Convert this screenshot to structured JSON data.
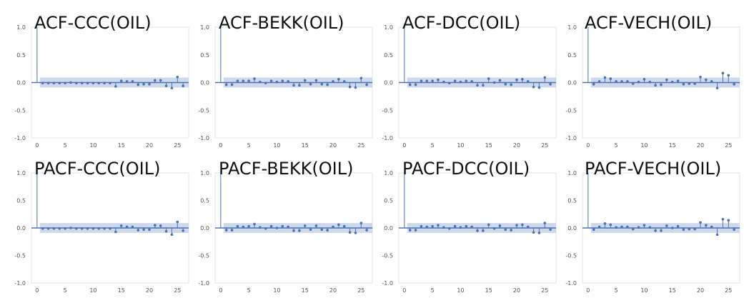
{
  "chart_data": [
    {
      "type": "stem",
      "title": "ACF-CCC(OIL)",
      "x": [
        0,
        1,
        2,
        3,
        4,
        5,
        6,
        7,
        8,
        9,
        10,
        11,
        12,
        13,
        14,
        15,
        16,
        17,
        18,
        19,
        20,
        21,
        22,
        23,
        24,
        25,
        26
      ],
      "values": [
        1.0,
        -0.01,
        -0.01,
        -0.01,
        -0.01,
        -0.01,
        0.0,
        -0.01,
        -0.01,
        -0.01,
        -0.01,
        -0.01,
        -0.01,
        -0.01,
        -0.07,
        0.03,
        0.02,
        0.02,
        -0.04,
        -0.03,
        -0.03,
        0.04,
        0.04,
        -0.06,
        -0.1,
        0.1,
        -0.06
      ],
      "confint": 0.09,
      "xticks": [
        0,
        5,
        10,
        15,
        20,
        25
      ],
      "yticks": [
        -1.0,
        -0.5,
        0.0,
        0.5,
        1.0
      ],
      "ylim": [
        -1.0,
        1.0
      ],
      "xlim": [
        -1,
        27
      ],
      "color": "#4c72b0",
      "band_color": "#c6d2e9"
    },
    {
      "type": "stem",
      "title": "ACF-BEKK(OIL)",
      "x": [
        0,
        1,
        2,
        3,
        4,
        5,
        6,
        7,
        8,
        9,
        10,
        11,
        12,
        13,
        14,
        15,
        16,
        17,
        18,
        19,
        20,
        21,
        22,
        23,
        24,
        25,
        26
      ],
      "values": [
        1.0,
        -0.04,
        -0.04,
        0.03,
        0.03,
        0.03,
        0.07,
        0.01,
        -0.01,
        0.03,
        0.01,
        0.03,
        0.02,
        -0.05,
        -0.05,
        0.04,
        -0.03,
        0.04,
        -0.03,
        -0.04,
        0.02,
        0.06,
        0.02,
        -0.08,
        -0.09,
        0.08,
        -0.04
      ],
      "confint": 0.09,
      "xticks": [
        0,
        5,
        10,
        15,
        20,
        25
      ],
      "yticks": [
        -1.0,
        -0.5,
        0.0,
        0.5,
        1.0
      ],
      "ylim": [
        -1.0,
        1.0
      ],
      "xlim": [
        -1,
        27
      ],
      "color": "#4c72b0",
      "band_color": "#c6d2e9"
    },
    {
      "type": "stem",
      "title": "ACF-DCC(OIL)",
      "x": [
        0,
        1,
        2,
        3,
        4,
        5,
        6,
        7,
        8,
        9,
        10,
        11,
        12,
        13,
        14,
        15,
        16,
        17,
        18,
        19,
        20,
        21,
        22,
        23,
        24,
        25,
        26
      ],
      "values": [
        1.0,
        -0.04,
        -0.04,
        0.03,
        0.03,
        0.03,
        0.05,
        0.01,
        -0.01,
        0.03,
        0.01,
        0.03,
        0.02,
        -0.05,
        -0.05,
        0.07,
        0.0,
        0.04,
        -0.03,
        -0.04,
        0.05,
        0.06,
        0.02,
        -0.08,
        -0.09,
        0.09,
        -0.03
      ],
      "confint": 0.09,
      "xticks": [
        0,
        5,
        10,
        15,
        20,
        25
      ],
      "yticks": [
        -1.0,
        -0.5,
        0.0,
        0.5,
        1.0
      ],
      "ylim": [
        -1.0,
        1.0
      ],
      "xlim": [
        -1,
        27
      ],
      "color": "#4c72b0",
      "band_color": "#c6d2e9"
    },
    {
      "type": "stem",
      "title": "ACF-VECH(OIL)",
      "x": [
        0,
        1,
        2,
        3,
        4,
        5,
        6,
        7,
        8,
        9,
        10,
        11,
        12,
        13,
        14,
        15,
        16,
        17,
        18,
        19,
        20,
        21,
        22,
        23,
        24,
        25,
        26
      ],
      "values": [
        1.0,
        -0.03,
        0.02,
        0.09,
        0.07,
        0.02,
        0.02,
        0.02,
        -0.02,
        0.01,
        0.06,
        0.01,
        -0.05,
        -0.04,
        0.05,
        0.01,
        0.03,
        -0.03,
        -0.02,
        -0.02,
        0.1,
        0.05,
        0.02,
        -0.1,
        0.17,
        0.13,
        -0.03
      ],
      "confint": 0.09,
      "xticks": [
        0,
        5,
        10,
        15,
        20,
        25
      ],
      "yticks": [
        -1.0,
        -0.5,
        0.0,
        0.5,
        1.0
      ],
      "ylim": [
        -1.0,
        1.0
      ],
      "xlim": [
        -1,
        27
      ],
      "color": "#4c72b0",
      "band_color": "#c6d2e9"
    },
    {
      "type": "stem",
      "title": "PACF-CCC(OIL)",
      "x": [
        0,
        1,
        2,
        3,
        4,
        5,
        6,
        7,
        8,
        9,
        10,
        11,
        12,
        13,
        14,
        15,
        16,
        17,
        18,
        19,
        20,
        21,
        22,
        23,
        24,
        25,
        26
      ],
      "values": [
        1.0,
        -0.01,
        -0.01,
        -0.01,
        -0.01,
        -0.01,
        0.0,
        -0.01,
        -0.01,
        -0.01,
        -0.01,
        -0.01,
        -0.01,
        -0.01,
        -0.07,
        0.04,
        0.02,
        0.02,
        -0.04,
        -0.03,
        -0.03,
        0.05,
        0.04,
        -0.06,
        -0.12,
        0.11,
        -0.05
      ],
      "confint": 0.09,
      "xticks": [
        0,
        5,
        10,
        15,
        20,
        25
      ],
      "yticks": [
        -1.0,
        -0.5,
        0.0,
        0.5,
        1.0
      ],
      "ylim": [
        -1.0,
        1.0
      ],
      "xlim": [
        -1,
        27
      ],
      "color": "#4c72b0",
      "band_color": "#c6d2e9"
    },
    {
      "type": "stem",
      "title": "PACF-BEKK(OIL)",
      "x": [
        0,
        1,
        2,
        3,
        4,
        5,
        6,
        7,
        8,
        9,
        10,
        11,
        12,
        13,
        14,
        15,
        16,
        17,
        18,
        19,
        20,
        21,
        22,
        23,
        24,
        25,
        26
      ],
      "values": [
        1.0,
        -0.04,
        -0.04,
        0.03,
        0.02,
        0.03,
        0.07,
        0.01,
        -0.01,
        0.03,
        0.0,
        0.03,
        0.02,
        -0.05,
        -0.05,
        0.04,
        -0.03,
        0.04,
        -0.03,
        -0.04,
        0.02,
        0.06,
        0.03,
        -0.08,
        -0.09,
        0.09,
        -0.04
      ],
      "confint": 0.09,
      "xticks": [
        0,
        5,
        10,
        15,
        20,
        25
      ],
      "yticks": [
        -1.0,
        -0.5,
        0.0,
        0.5,
        1.0
      ],
      "ylim": [
        -1.0,
        1.0
      ],
      "xlim": [
        -1,
        27
      ],
      "color": "#4c72b0",
      "band_color": "#c6d2e9"
    },
    {
      "type": "stem",
      "title": "PACF-DCC(OIL)",
      "x": [
        0,
        1,
        2,
        3,
        4,
        5,
        6,
        7,
        8,
        9,
        10,
        11,
        12,
        13,
        14,
        15,
        16,
        17,
        18,
        19,
        20,
        21,
        22,
        23,
        24,
        25,
        26
      ],
      "values": [
        1.0,
        -0.04,
        -0.04,
        0.03,
        0.02,
        0.03,
        0.05,
        0.01,
        -0.01,
        0.03,
        0.01,
        0.03,
        0.02,
        -0.05,
        -0.05,
        0.06,
        -0.01,
        0.04,
        -0.03,
        -0.04,
        0.05,
        0.06,
        0.02,
        -0.08,
        -0.09,
        0.09,
        -0.03
      ],
      "confint": 0.09,
      "xticks": [
        0,
        5,
        10,
        15,
        20,
        25
      ],
      "yticks": [
        -1.0,
        -0.5,
        0.0,
        0.5,
        1.0
      ],
      "ylim": [
        -1.0,
        1.0
      ],
      "xlim": [
        -1,
        27
      ],
      "color": "#4c72b0",
      "band_color": "#c6d2e9"
    },
    {
      "type": "stem",
      "title": "PACF-VECH(OIL)",
      "x": [
        0,
        1,
        2,
        3,
        4,
        5,
        6,
        7,
        8,
        9,
        10,
        11,
        12,
        13,
        14,
        15,
        16,
        17,
        18,
        19,
        20,
        21,
        22,
        23,
        24,
        25,
        26
      ],
      "values": [
        1.0,
        -0.03,
        0.02,
        0.08,
        0.06,
        0.01,
        0.02,
        0.02,
        -0.02,
        0.01,
        0.05,
        0.01,
        -0.05,
        -0.05,
        0.04,
        0.0,
        0.03,
        -0.03,
        -0.02,
        -0.02,
        0.1,
        0.05,
        0.02,
        -0.12,
        0.16,
        0.14,
        -0.03
      ],
      "confint": 0.09,
      "xticks": [
        0,
        5,
        10,
        15,
        20,
        25
      ],
      "yticks": [
        -1.0,
        -0.5,
        0.0,
        0.5,
        1.0
      ],
      "ylim": [
        -1.0,
        1.0
      ],
      "xlim": [
        -1,
        27
      ],
      "color": "#4c72b0",
      "band_color": "#c6d2e9"
    }
  ]
}
